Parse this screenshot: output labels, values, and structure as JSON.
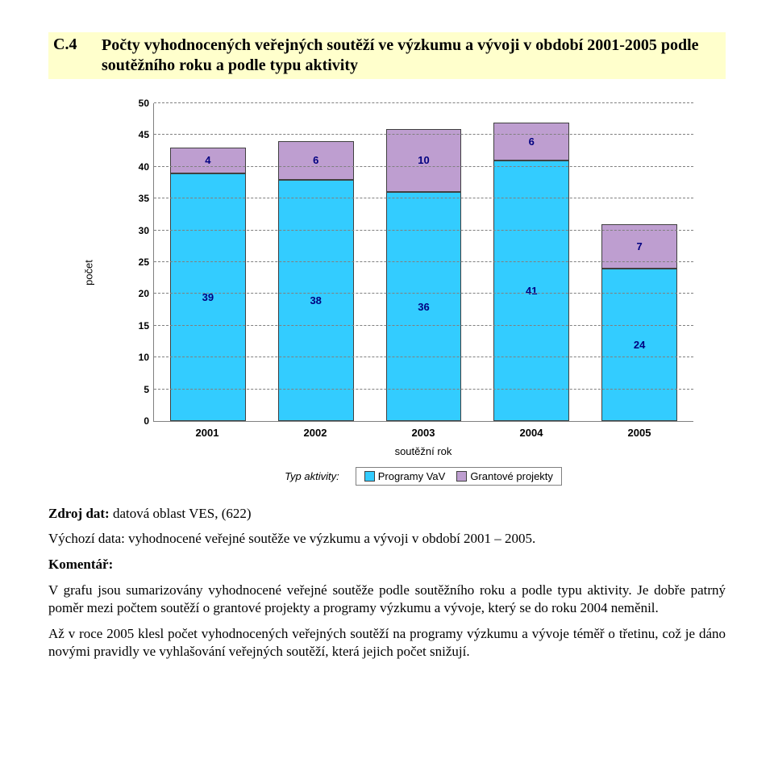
{
  "heading": {
    "num": "C.4",
    "text": "Počty vyhodnocených veřejných soutěží ve výzkumu a vývoji v období 2001-2005 podle soutěžního roku a podle typu aktivity"
  },
  "chart": {
    "type": "stacked-bar",
    "ylabel": "počet",
    "xlabel": "soutěžní rok",
    "ymax": 50,
    "ytick_step": 5,
    "categories": [
      "2001",
      "2002",
      "2003",
      "2004",
      "2005"
    ],
    "series": [
      {
        "name": "Programy VaV",
        "color": "#33ccff",
        "text_color": "#000080"
      },
      {
        "name": "Grantové projekty",
        "color": "#be9ed0",
        "text_color": "#000080"
      }
    ],
    "values_programy": [
      39,
      38,
      36,
      41,
      24
    ],
    "values_grantove": [
      4,
      6,
      10,
      6,
      7
    ],
    "grid_color": "#808080",
    "bg_color": "#ffffff",
    "legend_label": "Typ aktivity:"
  },
  "source": {
    "label": "Zdroj dat:",
    "text": " datová oblast VES, (622)"
  },
  "body": {
    "vychozi": "Výchozí data: vyhodnocené veřejné soutěže ve výzkumu a vývoji v období 2001 – 2005.",
    "komentar_label": "Komentář:",
    "p1": "V grafu jsou sumarizovány vyhodnocené veřejné soutěže podle soutěžního roku a podle typu aktivity. Je dobře patrný poměr mezi počtem soutěží o grantové projekty a programy výzkumu a vývoje, který se do roku 2004 neměnil.",
    "p2": "Až v roce 2005 klesl počet vyhodnocených veřejných soutěží na programy výzkumu a vývoje téměř o třetinu, což je dáno novými pravidly ve vyhlašování veřejných soutěží, která jejich počet snižují."
  }
}
